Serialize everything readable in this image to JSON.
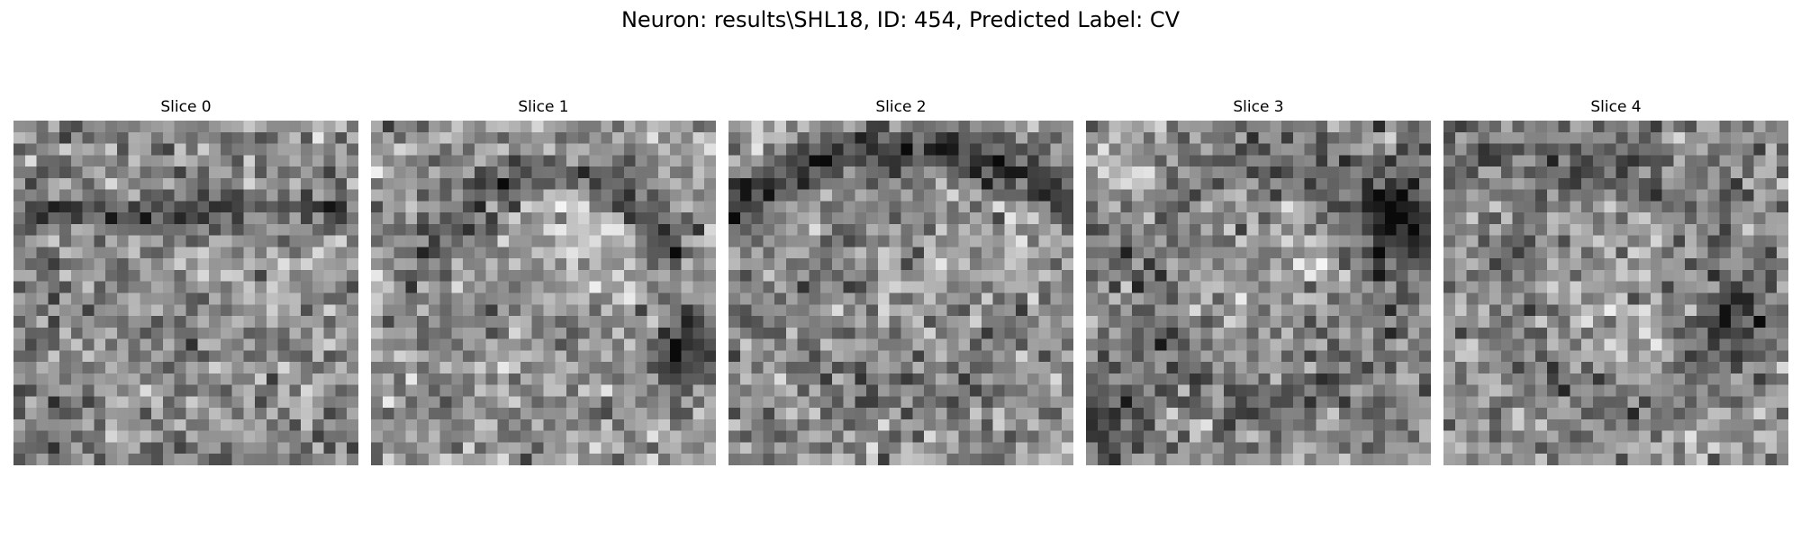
{
  "figure": {
    "title": "Neuron: results\\SHL18, ID: 454, Predicted Label: CV",
    "colormap": "gray"
  },
  "panels": [
    {
      "title": "Slice 0"
    },
    {
      "title": "Slice 1"
    },
    {
      "title": "Slice 2"
    },
    {
      "title": "Slice 3"
    },
    {
      "title": "Slice 4"
    }
  ]
}
